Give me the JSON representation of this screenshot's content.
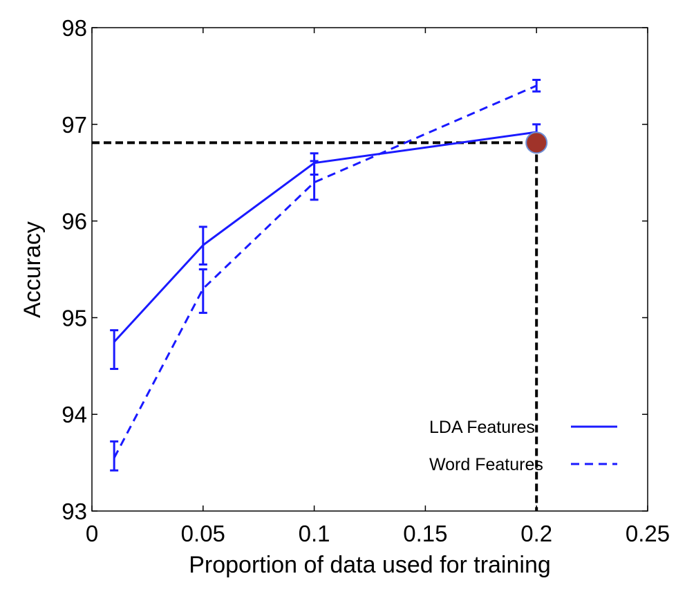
{
  "chart_data": {
    "type": "line",
    "xlabel": "Proportion of data used for training",
    "ylabel": "Accuracy",
    "xlim": [
      0,
      0.25
    ],
    "ylim": [
      93,
      98
    ],
    "xticks": [
      "0",
      "0.05",
      "0.1",
      "0.15",
      "0.2",
      "0.25"
    ],
    "yticks": [
      "93",
      "94",
      "95",
      "96",
      "97",
      "98"
    ],
    "x": [
      0.01,
      0.05,
      0.1,
      0.2
    ],
    "grid": false,
    "legend_position": "bottom-right",
    "series": [
      {
        "name": "LDA Features",
        "style": "solid",
        "color": "#1a1aff",
        "values": [
          94.75,
          95.75,
          96.6,
          96.92
        ],
        "error_low": [
          94.47,
          95.55,
          96.48,
          96.83
        ],
        "error_high": [
          94.87,
          95.94,
          96.7,
          97.0
        ]
      },
      {
        "name": "Word Features",
        "style": "dashed",
        "color": "#1a1aff",
        "values": [
          93.55,
          95.3,
          96.4,
          97.4
        ],
        "error_low": [
          93.42,
          95.05,
          96.22,
          97.34
        ],
        "error_high": [
          93.72,
          95.5,
          96.62,
          97.46
        ]
      }
    ],
    "annotations": {
      "marker": {
        "x": 0.2,
        "y": 96.81,
        "color": "#a0332a",
        "edge_color": "#6e8fd6"
      },
      "reference_lines": {
        "x": 0.2,
        "y": 96.81,
        "color": "#000000",
        "style": "dashed"
      }
    }
  }
}
